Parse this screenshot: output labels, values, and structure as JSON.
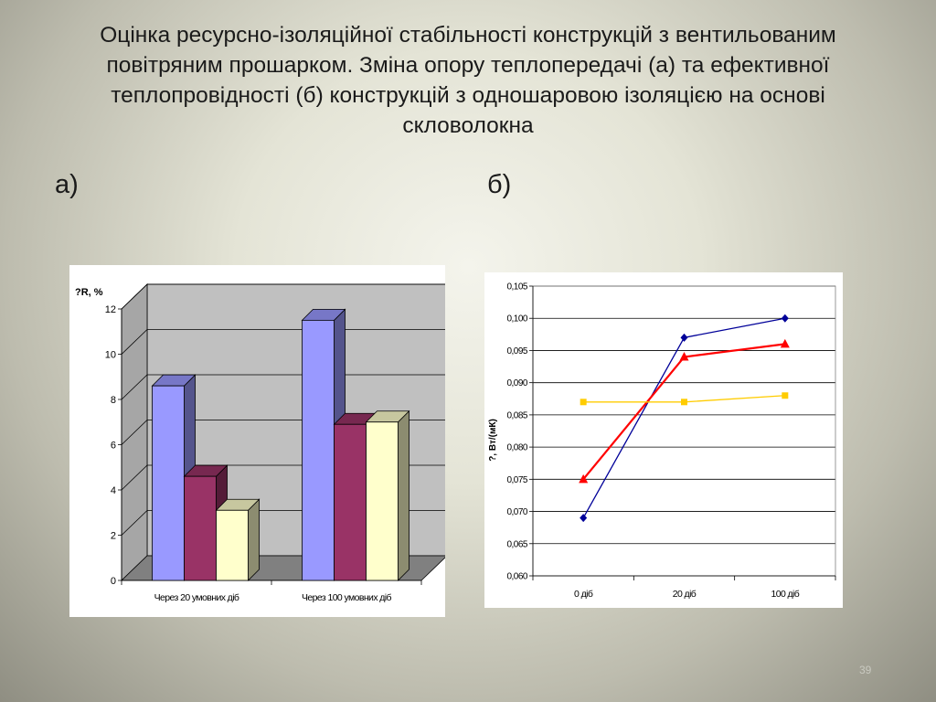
{
  "slide": {
    "title_lines": [
      "Оцінка ресурсно-ізоляційної стабільності конструкцій з вентильованим",
      "повітряним прошарком. Зміна опору теплопередачі (а) та ефективної",
      "теплопровідності (б) конструкцій з одношаровою ізоляцією на основі",
      "скловолокна"
    ],
    "label_a": "а)",
    "label_b": "б)",
    "page_number": "39"
  },
  "chart_data": [
    {
      "type": "bar",
      "style": "3d-clustered-column",
      "ylabel": "?R, %",
      "categories": [
        "Через 20 умовних діб",
        "Через 100 умовних діб"
      ],
      "series": [
        {
          "color": "#9999ff",
          "values": [
            8.6,
            11.5
          ]
        },
        {
          "color": "#993366",
          "values": [
            4.6,
            6.9
          ]
        },
        {
          "color": "#ffffcc",
          "values": [
            3.1,
            7.0
          ]
        }
      ],
      "ylim": [
        0,
        12
      ],
      "yticks": [
        "0",
        "2",
        "4",
        "6",
        "8",
        "10",
        "12"
      ],
      "grid": true,
      "wall_color": "#c0c0c0",
      "floor_color": "#808080"
    },
    {
      "type": "line",
      "ylabel": "?, Вт/(мК)",
      "categories": [
        "0 діб",
        "20 діб",
        "100 діб"
      ],
      "series": [
        {
          "color": "#000099",
          "marker": "diamond",
          "values": [
            0.069,
            0.097,
            0.1
          ]
        },
        {
          "color": "#ff0000",
          "marker": "triangle",
          "values": [
            0.075,
            0.094,
            0.096
          ]
        },
        {
          "color": "#ffcc00",
          "marker": "square",
          "values": [
            0.087,
            0.087,
            0.088
          ]
        }
      ],
      "ylim": [
        0.06,
        0.105
      ],
      "yticks": [
        "0,060",
        "0,065",
        "0,070",
        "0,075",
        "0,080",
        "0,085",
        "0,090",
        "0,095",
        "0,100",
        "0,105"
      ],
      "grid": true
    }
  ]
}
